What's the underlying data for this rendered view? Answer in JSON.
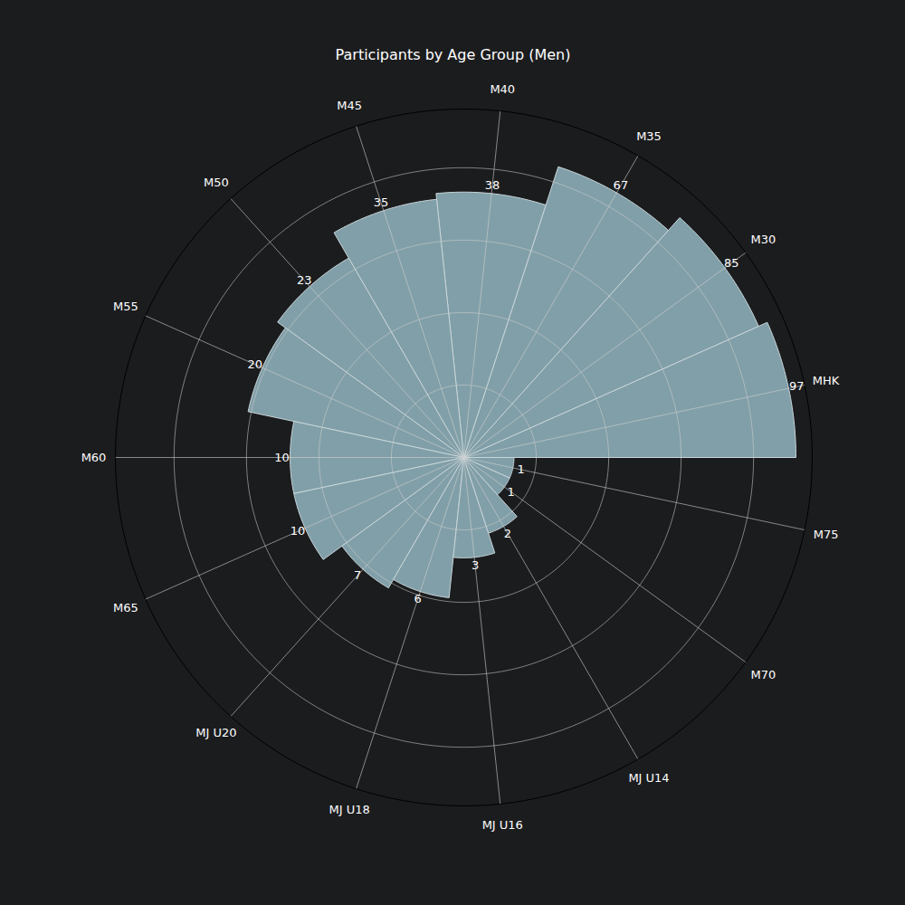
{
  "chart_data": {
    "type": "bar",
    "title": "Participants by Age Group (Men)",
    "categories": [
      "MHK",
      "M30",
      "M35",
      "M40",
      "M45",
      "M50",
      "M55",
      "M60",
      "M65",
      "MJ U20",
      "MJ U18",
      "MJ U16",
      "MJ U14",
      "M70",
      "M75"
    ],
    "values": [
      97,
      85,
      67,
      38,
      35,
      23,
      20,
      10,
      10,
      7,
      6,
      3,
      2,
      1,
      1
    ],
    "color": "#819fa8",
    "log": "y",
    "ylim": [
      0,
      121.7
    ],
    "yticks": [
      1.718,
      6.389,
      19.09,
      53.6
    ],
    "grid": true,
    "data_labels": true,
    "tick_labels": "x"
  }
}
